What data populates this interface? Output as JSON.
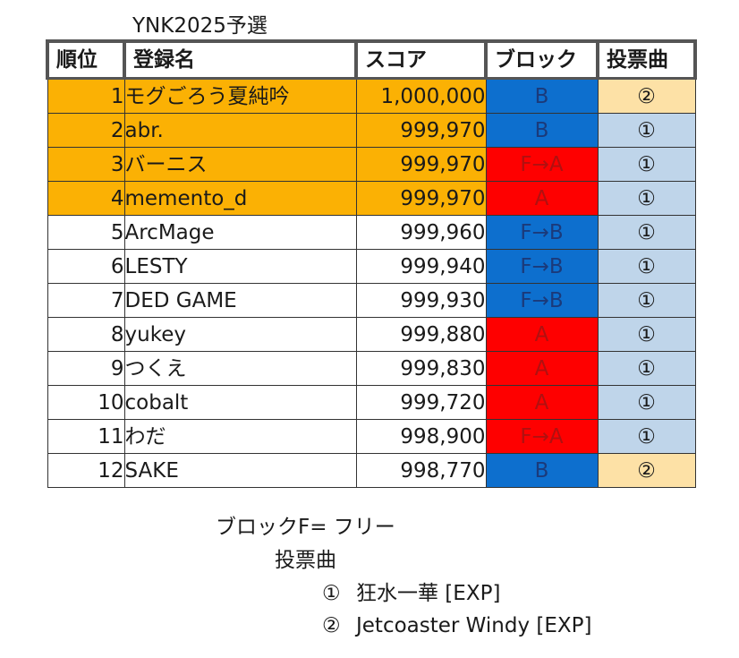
{
  "title": "YNK2025予選",
  "headers": {
    "rank": "順位",
    "name": "登録名",
    "score": "スコア",
    "block": "ブロック",
    "vote": "投票曲"
  },
  "rows": [
    {
      "rank": "1",
      "name": "モグごろう夏純吟",
      "score": "1,000,000",
      "block": "B",
      "vote": "②"
    },
    {
      "rank": "2",
      "name": "abr.",
      "score": "999,970",
      "block": "B",
      "vote": "①"
    },
    {
      "rank": "3",
      "name": "バーニス",
      "score": "999,970",
      "block": "F→A",
      "vote": "①"
    },
    {
      "rank": "4",
      "name": "memento_d",
      "score": "999,970",
      "block": "A",
      "vote": "①"
    },
    {
      "rank": "5",
      "name": "ArcMage",
      "score": "999,960",
      "block": "F→B",
      "vote": "①"
    },
    {
      "rank": "6",
      "name": "LESTY",
      "score": "999,940",
      "block": "F→B",
      "vote": "①"
    },
    {
      "rank": "7",
      "name": "DED GAME",
      "score": "999,930",
      "block": "F→B",
      "vote": "①"
    },
    {
      "rank": "8",
      "name": "yukey",
      "score": "999,880",
      "block": "A",
      "vote": "①"
    },
    {
      "rank": "9",
      "name": "つくえ",
      "score": "999,830",
      "block": "A",
      "vote": "①"
    },
    {
      "rank": "10",
      "name": "cobalt",
      "score": "999,720",
      "block": "A",
      "vote": "①"
    },
    {
      "rank": "11",
      "name": "わだ",
      "score": "998,900",
      "block": "F→A",
      "vote": "①"
    },
    {
      "rank": "12",
      "name": "SAKE",
      "score": "998,770",
      "block": "B",
      "vote": "②"
    }
  ],
  "legend": {
    "block_note": "ブロックF=  フリー",
    "vote_heading": "投票曲",
    "songs": [
      {
        "mark": "①",
        "title": "狂水一華 [EXP]"
      },
      {
        "mark": "②",
        "title": "Jetcoaster Windy [EXP]"
      }
    ]
  },
  "colors": {
    "highlight_orange": "#fbb104",
    "block_b_blue": "#0d6fce",
    "block_a_red": "#fe0000",
    "vote1_light_blue": "#bfd5ea",
    "vote2_light_orange": "#fde1a6"
  }
}
